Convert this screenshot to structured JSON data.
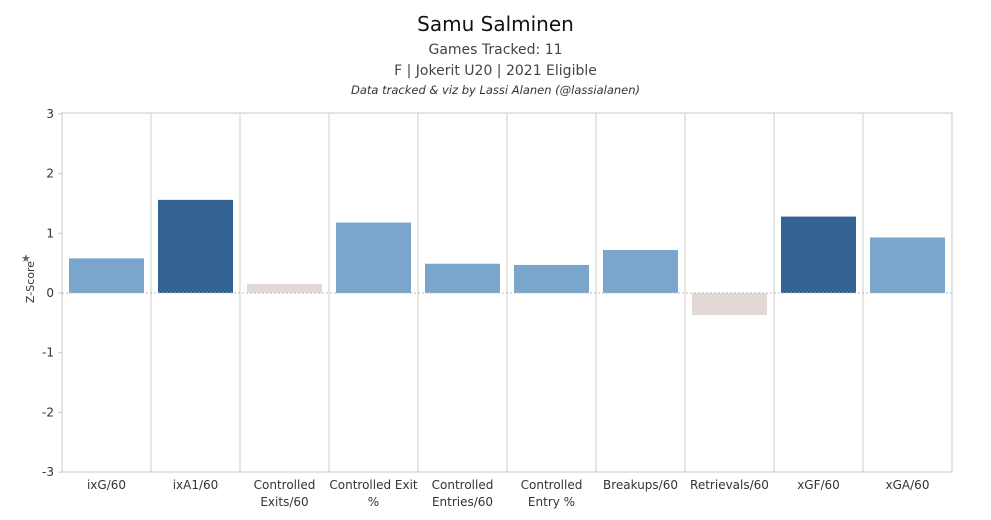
{
  "header": {
    "title": "Samu Salminen",
    "subtitle1": "Games Tracked: 11",
    "subtitle2": "F | Jokerit U20 | 2021 Eligible",
    "credit": "Data tracked & viz by Lassi Alanen (@lassialanen)"
  },
  "pin_icon": "pin-icon",
  "chart_data": {
    "type": "bar",
    "ylabel": "Z-Score",
    "ylim": [
      -3.2,
      3.2
    ],
    "yticks": [
      3,
      2,
      1,
      0,
      -1,
      -2,
      -3
    ],
    "categories": [
      [
        "ixG/60"
      ],
      [
        "ixA1/60"
      ],
      [
        "Controlled",
        "Exits/60"
      ],
      [
        "Controlled Exit",
        "%"
      ],
      [
        "Controlled",
        "Entries/60"
      ],
      [
        "Controlled",
        "Entry %"
      ],
      [
        "Breakups/60"
      ],
      [
        "Retrievals/60"
      ],
      [
        "xGF/60"
      ],
      [
        "xGA/60"
      ]
    ],
    "values": [
      0.58,
      1.56,
      0.15,
      1.18,
      0.49,
      0.47,
      0.72,
      -0.37,
      1.28,
      0.93
    ],
    "bar_colors": [
      "#7aa6cc",
      "#336392",
      "#e2d9d6",
      "#7aa6cc",
      "#7aa6cc",
      "#7aa6cc",
      "#7aa6cc",
      "#e2d9d6",
      "#336392",
      "#7aa6cc"
    ],
    "grid": true
  }
}
